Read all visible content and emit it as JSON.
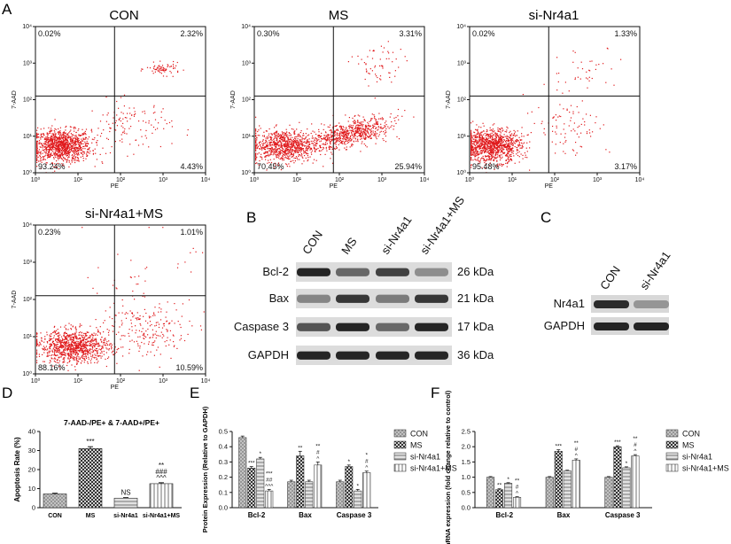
{
  "panel_letters": {
    "A": "A",
    "B": "B",
    "C": "C",
    "D": "D",
    "E": "E",
    "F": "F"
  },
  "chart_data": [
    {
      "type": "scatter",
      "panel": "A",
      "title": "CON",
      "xlabel": "PE",
      "ylabel": "7-AAD",
      "scale": "log",
      "xlim": [
        1,
        10000
      ],
      "ylim": [
        1,
        10000
      ],
      "x_ticks": [
        "10⁰",
        "10¹",
        "10²",
        "10³",
        "10⁴"
      ],
      "y_ticks": [
        "10⁰",
        "10¹",
        "10²",
        "10³",
        "10⁴"
      ],
      "quadrants": {
        "upper_left": "0.02%",
        "upper_right": "2.32%",
        "lower_left": "93.24%",
        "lower_right": "4.43%"
      }
    },
    {
      "type": "scatter",
      "panel": "A",
      "title": "MS",
      "xlabel": "PE",
      "ylabel": "7-AAD",
      "scale": "log",
      "xlim": [
        1,
        10000
      ],
      "ylim": [
        1,
        10000
      ],
      "x_ticks": [
        "10⁰",
        "10¹",
        "10²",
        "10³",
        "10⁴"
      ],
      "y_ticks": [
        "10⁰",
        "10¹",
        "10²",
        "10³",
        "10⁴"
      ],
      "quadrants": {
        "upper_left": "0.30%",
        "upper_right": "3.31%",
        "lower_left": "70.45%",
        "lower_right": "25.94%"
      }
    },
    {
      "type": "scatter",
      "panel": "A",
      "title": "si-Nr4a1",
      "xlabel": "PE",
      "ylabel": "7-AAD",
      "scale": "log",
      "xlim": [
        1,
        10000
      ],
      "ylim": [
        1,
        10000
      ],
      "x_ticks": [
        "10⁰",
        "10¹",
        "10²",
        "10³",
        "10⁴"
      ],
      "y_ticks": [
        "10⁰",
        "10¹",
        "10²",
        "10³",
        "10⁴"
      ],
      "quadrants": {
        "upper_left": "0.02%",
        "upper_right": "1.33%",
        "lower_left": "95.48%",
        "lower_right": "3.17%"
      }
    },
    {
      "type": "scatter",
      "panel": "A",
      "title": "si-Nr4a1+MS",
      "xlabel": "PE",
      "ylabel": "7-AAD",
      "scale": "log",
      "xlim": [
        1,
        10000
      ],
      "ylim": [
        1,
        10000
      ],
      "x_ticks": [
        "10⁰",
        "10¹",
        "10²",
        "10³",
        "10⁴"
      ],
      "y_ticks": [
        "10⁰",
        "10¹",
        "10²",
        "10³",
        "10⁴"
      ],
      "quadrants": {
        "upper_left": "0.23%",
        "upper_right": "1.01%",
        "lower_left": "88.16%",
        "lower_right": "10.59%"
      }
    },
    {
      "type": "bar",
      "panel": "D",
      "title": "7-AAD-/PE+ & 7-AAD+/PE+",
      "ylabel": "Apoptosis Rate (%)",
      "ylim": [
        0,
        40
      ],
      "y_ticks": [
        "0",
        "10",
        "20",
        "30",
        "40"
      ],
      "categories": [
        "CON",
        "MS",
        "si-Nr4a1",
        "si-Nr4a1+MS"
      ],
      "values": [
        7.2,
        31.0,
        5.0,
        12.6
      ],
      "errors": [
        0.4,
        1.0,
        0.3,
        0.5
      ],
      "annotations": [
        [
          ""
        ],
        [
          "***"
        ],
        [
          "NS"
        ],
        [
          "^^^",
          "###",
          "**"
        ]
      ]
    },
    {
      "type": "bar",
      "panel": "E",
      "ylabel": "Protein Expression (Relative to GAPDH)",
      "ylim": [
        0,
        0.5
      ],
      "y_ticks": [
        "0.0",
        "0.1",
        "0.2",
        "0.3",
        "0.4",
        "0.5"
      ],
      "categories": [
        "Bcl-2",
        "Bax",
        "Caspase 3"
      ],
      "series": [
        {
          "name": "CON",
          "values": [
            0.46,
            0.17,
            0.17
          ],
          "errors": [
            0.01,
            0.01,
            0.01
          ]
        },
        {
          "name": "MS",
          "values": [
            0.26,
            0.34,
            0.27
          ],
          "errors": [
            0.01,
            0.03,
            0.01
          ]
        },
        {
          "name": "si-Nr4a1",
          "values": [
            0.32,
            0.17,
            0.11
          ],
          "errors": [
            0.01,
            0.01,
            0.01
          ]
        },
        {
          "name": "si-Nr4a1+MS",
          "values": [
            0.11,
            0.28,
            0.23
          ],
          "errors": [
            0.01,
            0.02,
            0.01
          ]
        }
      ],
      "annotations": [
        [
          [
            ""
          ],
          [
            "***"
          ],
          [
            "*"
          ],
          [
            "^^^",
            "##",
            "***"
          ]
        ],
        [
          [
            ""
          ],
          [
            "**"
          ],
          [
            ""
          ],
          [
            "^",
            "#",
            "**"
          ]
        ],
        [
          [
            ""
          ],
          [
            "*"
          ],
          [
            "*"
          ],
          [
            "^",
            "#",
            "*"
          ]
        ]
      ]
    },
    {
      "type": "bar",
      "panel": "F",
      "ylabel": "mRNA expression (fold change relative to control)",
      "ylim": [
        0,
        2.5
      ],
      "y_ticks": [
        "0.0",
        "0.5",
        "1.0",
        "1.5",
        "2.0",
        "2.5"
      ],
      "categories": [
        "Bcl-2",
        "Bax",
        "Caspase 3"
      ],
      "series": [
        {
          "name": "CON",
          "values": [
            1.0,
            1.0,
            1.0
          ],
          "errors": [
            0.02,
            0.02,
            0.02
          ]
        },
        {
          "name": "MS",
          "values": [
            0.59,
            1.85,
            2.0
          ],
          "errors": [
            0.03,
            0.05,
            0.03
          ]
        },
        {
          "name": "si-Nr4a1",
          "values": [
            0.8,
            1.21,
            1.31
          ],
          "errors": [
            0.02,
            0.02,
            0.03
          ]
        },
        {
          "name": "si-Nr4a1+MS",
          "values": [
            0.34,
            1.56,
            1.7
          ],
          "errors": [
            0.02,
            0.04,
            0.04
          ]
        }
      ],
      "annotations": [
        [
          [
            ""
          ],
          [
            "**"
          ],
          [
            "*"
          ],
          [
            "^",
            "#",
            "**"
          ]
        ],
        [
          [
            ""
          ],
          [
            "***"
          ],
          [
            ""
          ],
          [
            "^",
            "#",
            "**"
          ]
        ],
        [
          [
            ""
          ],
          [
            "***"
          ],
          [
            "*"
          ],
          [
            "^",
            "#",
            "**"
          ]
        ]
      ]
    }
  ],
  "western_B": {
    "lanes": [
      "CON",
      "MS",
      "si-Nr4a1",
      "si-Nr4a1+MS"
    ],
    "rows": [
      {
        "protein": "Bcl-2",
        "size": "26 kDa"
      },
      {
        "protein": "Bax",
        "size": "21 kDa"
      },
      {
        "protein": "Caspase 3",
        "size": "17 kDa"
      },
      {
        "protein": "GAPDH",
        "size": "36 kDa"
      }
    ]
  },
  "western_C": {
    "lanes": [
      "CON",
      "si-Nr4a1"
    ],
    "rows": [
      {
        "protein": "Nr4a1"
      },
      {
        "protein": "GAPDH"
      }
    ]
  },
  "colors": {
    "dots": "#e0191c",
    "axis": "#111111",
    "band": "#1a1a1a"
  }
}
